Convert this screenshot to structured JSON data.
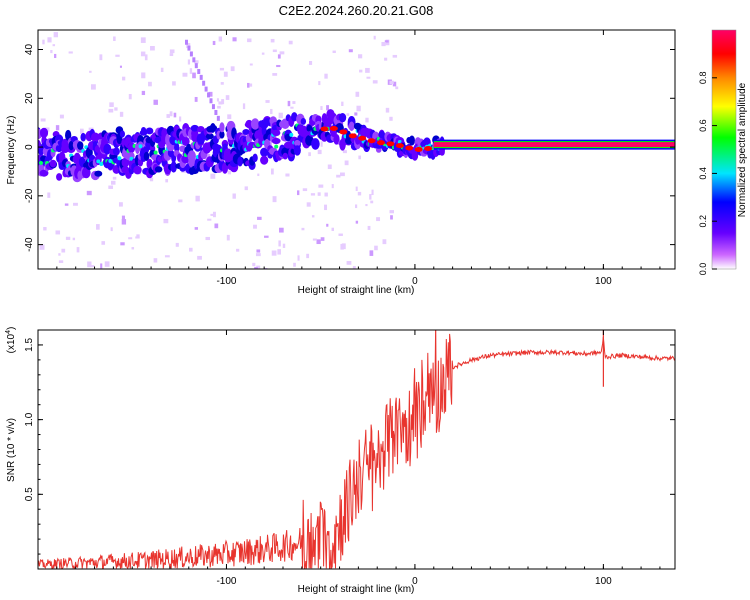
{
  "title": "C2E2.2024.260.20.21.G08",
  "chart_data": [
    {
      "type": "heatmap",
      "xlabel": "Height of straight line (km)",
      "ylabel": "Frequency (Hz)",
      "xlim": [
        -200,
        138
      ],
      "ylim": [
        -50,
        48
      ],
      "xticks": [
        -100,
        0,
        100
      ],
      "yticks": [
        -40,
        -20,
        0,
        20,
        40
      ],
      "ridge": {
        "x": [
          -200,
          -180,
          -160,
          -140,
          -120,
          -100,
          -80,
          -60,
          -50,
          -45,
          -40,
          -35,
          -30,
          -25,
          -20,
          -15,
          -10,
          -5,
          0,
          5,
          10,
          15,
          138
        ],
        "freq": [
          -3,
          -4,
          -2,
          -2,
          -1,
          0,
          2,
          5,
          7,
          8,
          7,
          5,
          4,
          3,
          2,
          1.5,
          1,
          0,
          -1,
          -1,
          0,
          1,
          1
        ]
      },
      "colorbar": {
        "label": "Normalized spectral amplitude",
        "range": [
          0,
          1
        ],
        "ticks": [
          0.0,
          0.2,
          0.4,
          0.6,
          0.8
        ],
        "tick_labels": [
          "0.0",
          "0.2",
          "0.4",
          "0.6",
          "0.8"
        ],
        "colors": [
          "#ffffff",
          "#cc66ff",
          "#6600ff",
          "#0000ff",
          "#00e5ff",
          "#00ff00",
          "#ffff00",
          "#ff8800",
          "#ff0000",
          "#ff0066"
        ]
      }
    },
    {
      "type": "line",
      "xlabel": "Height of straight line (km)",
      "ylabel": "SNR (10 * v/v)",
      "y_multiplier": "(x10",
      "y_multiplier_exp": "4",
      "y_multiplier_close": ")",
      "xlim": [
        -200,
        138
      ],
      "ylim": [
        0,
        1.6
      ],
      "xticks": [
        -100,
        0,
        100
      ],
      "yticks": [
        0.5,
        1.0,
        1.5
      ],
      "ytick_labels": [
        "0.5",
        "1.0",
        "1.5"
      ],
      "series": [
        {
          "name": "SNR",
          "color": "#e8342e",
          "x": [
            -200,
            -180,
            -160,
            -140,
            -120,
            -100,
            -80,
            -70,
            -60,
            -55,
            -50,
            -45,
            -40,
            -35,
            -30,
            -25,
            -20,
            -15,
            -10,
            -5,
            0,
            5,
            10,
            15,
            20,
            30,
            40,
            50,
            60,
            70,
            80,
            90,
            99,
            100,
            101,
            110,
            120,
            130,
            138
          ],
          "values": [
            0.03,
            0.04,
            0.05,
            0.06,
            0.08,
            0.1,
            0.13,
            0.15,
            0.18,
            0.12,
            0.2,
            0.15,
            0.3,
            0.45,
            0.6,
            0.7,
            0.72,
            0.85,
            0.9,
            0.95,
            0.98,
            1.05,
            1.12,
            1.25,
            1.35,
            1.4,
            1.43,
            1.44,
            1.45,
            1.45,
            1.45,
            1.44,
            1.45,
            1.55,
            1.42,
            1.43,
            1.42,
            1.41,
            1.41
          ]
        }
      ]
    }
  ]
}
